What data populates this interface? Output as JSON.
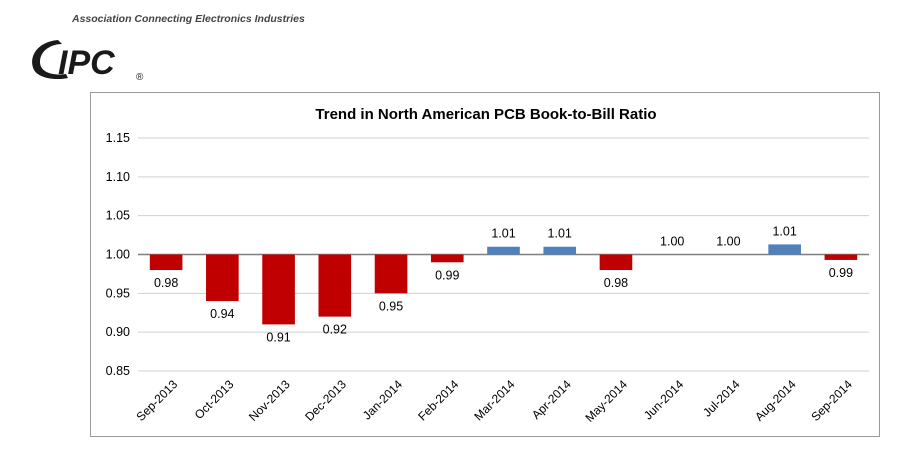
{
  "header": {
    "tagline": "Association Connecting Electronics Industries",
    "logo_text": "IPC",
    "registered_mark": "®"
  },
  "chart_data": {
    "type": "bar",
    "title": "Trend in North American PCB Book-to-Bill Ratio",
    "categories": [
      "Sep-2013",
      "Oct-2013",
      "Nov-2013",
      "Dec-2013",
      "Jan-2014",
      "Feb-2014",
      "Mar-2014",
      "Apr-2014",
      "May-2014",
      "Jun-2014",
      "Jul-2014",
      "Aug-2014",
      "Sep-2014"
    ],
    "values": [
      0.98,
      0.94,
      0.91,
      0.92,
      0.95,
      0.99,
      1.01,
      1.01,
      0.98,
      1.0,
      1.0,
      1.013,
      0.993
    ],
    "data_labels": [
      "0.98",
      "0.94",
      "0.91",
      "0.92",
      "0.95",
      "0.99",
      "1.01",
      "1.01",
      "0.98",
      "1.00",
      "1.00",
      "1.01",
      "0.99"
    ],
    "baseline": 1.0,
    "ylim": [
      0.85,
      1.15
    ],
    "yticks": [
      "0.85",
      "0.90",
      "0.95",
      "1.00",
      "1.05",
      "1.10",
      "1.15"
    ],
    "xlabel": "",
    "ylabel": "",
    "grid": true,
    "legend": "none",
    "colors": {
      "below": "#c00000",
      "above": "#4f81bd",
      "grid": "#d0d0d0",
      "axis": "#7f7f7f",
      "logo": "#1a1a1a"
    }
  }
}
